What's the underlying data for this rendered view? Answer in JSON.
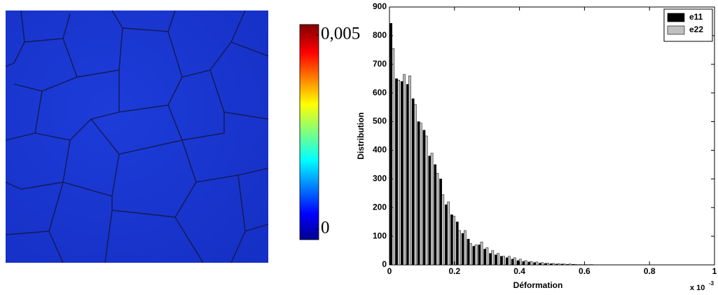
{
  "chart_data": [
    {
      "type": "colorbar",
      "clim": [
        0,
        0.005
      ],
      "cticks": [
        0,
        {
          "value": 0.005,
          "label": "0,005"
        }
      ]
    },
    {
      "type": "bar",
      "xlabel": "Déformation",
      "ylabel": "Distribution",
      "x_multiplier": "x 10",
      "x_exponent": "-3",
      "x": [
        0.008,
        0.025,
        0.042,
        0.059,
        0.076,
        0.093,
        0.11,
        0.127,
        0.144,
        0.161,
        0.178,
        0.195,
        0.212,
        0.229,
        0.246,
        0.263,
        0.28,
        0.297,
        0.314,
        0.331,
        0.348,
        0.365,
        0.382,
        0.399,
        0.416,
        0.433,
        0.45,
        0.467,
        0.484,
        0.501,
        0.518,
        0.535,
        0.552,
        0.569,
        0.586,
        0.603,
        0.62
      ],
      "series": [
        {
          "name": "e11",
          "color": "#000000",
          "values": [
            843,
            650,
            640,
            630,
            580,
            500,
            470,
            380,
            350,
            300,
            210,
            175,
            150,
            110,
            90,
            65,
            70,
            55,
            40,
            35,
            30,
            25,
            20,
            15,
            12,
            10,
            8,
            6,
            5,
            4,
            3,
            3,
            2,
            2,
            1,
            1,
            1
          ]
        },
        {
          "name": "e22",
          "color": "#c0c0c0",
          "values": [
            755,
            645,
            665,
            660,
            560,
            495,
            450,
            390,
            320,
            245,
            220,
            170,
            120,
            120,
            75,
            70,
            80,
            60,
            50,
            40,
            30,
            30,
            25,
            20,
            15,
            12,
            10,
            8,
            6,
            5,
            4,
            3,
            3,
            2,
            1,
            1,
            1
          ]
        }
      ],
      "xlim": [
        0,
        1
      ],
      "xticks": [
        0,
        0.2,
        0.4,
        0.6,
        0.8,
        1
      ],
      "ylim": [
        0,
        900
      ],
      "yticks": [
        0,
        100,
        200,
        300,
        400,
        500,
        600,
        700,
        800,
        900
      ],
      "legend": "upper-right"
    }
  ]
}
